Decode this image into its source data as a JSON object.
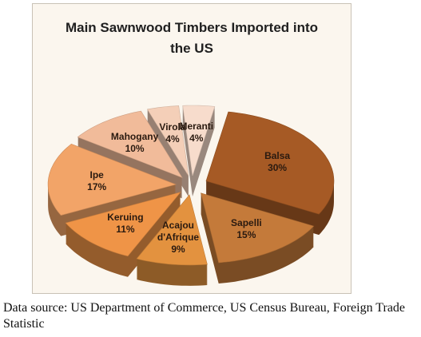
{
  "chart_data": {
    "type": "pie",
    "title": "Main Sawnwood Timbers Imported into the US",
    "categories": [
      "Balsa",
      "Sapelli",
      "Acajou d'Afrique",
      "Keruing",
      "Ipe",
      "Mahogany",
      "Virola",
      "Meranti"
    ],
    "values": [
      30,
      15,
      9,
      11,
      17,
      10,
      4,
      4
    ],
    "value_labels": [
      "30%",
      "15%",
      "9%",
      "11%",
      "17%",
      "10%",
      "4%",
      "4%"
    ],
    "colors": [
      "#a65a25",
      "#c47a3a",
      "#e3923f",
      "#ef9447",
      "#f2a468",
      "#f1bb9a",
      "#f4cfb8",
      "#f7dccc"
    ],
    "source": "Data source: US Department of Commerce, US Census Bureau, Foreign Trade Statistic"
  }
}
